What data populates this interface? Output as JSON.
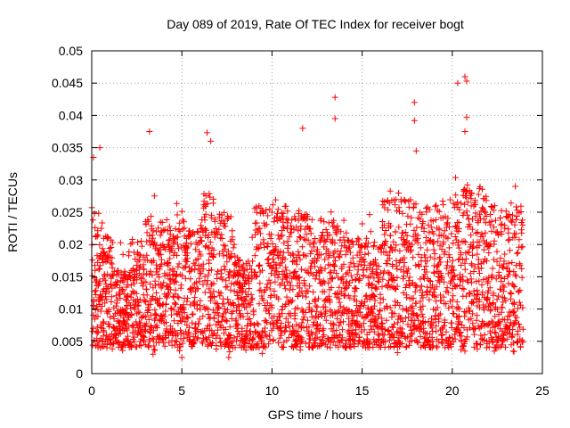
{
  "chart_data": {
    "type": "scatter",
    "title": "Day 089 of 2019, Rate Of TEC Index for receiver bogt",
    "xlabel": "GPS time / hours",
    "ylabel": "ROTI / TECUs",
    "xlim": [
      0,
      25
    ],
    "ylim": [
      0,
      0.05
    ],
    "x_ticks": [
      0,
      5,
      10,
      15,
      20,
      25
    ],
    "x_tick_labels": [
      "0",
      "5",
      "10",
      "15",
      "20",
      "25"
    ],
    "y_ticks": [
      0,
      0.005,
      0.01,
      0.015,
      0.02,
      0.025,
      0.03,
      0.035,
      0.04,
      0.045,
      0.05
    ],
    "y_tick_labels": [
      "0",
      "0.005",
      "0.01",
      "0.015",
      "0.02",
      "0.025",
      "0.03",
      "0.035",
      "0.04",
      "0.045",
      "0.05"
    ],
    "grid": true,
    "marker": "+",
    "marker_color": "#ff0000",
    "series": [
      {
        "name": "ROTI",
        "x_range": [
          0,
          23.95
        ],
        "sample_interval_hours": 0.04,
        "baseline_range": [
          0.005,
          0.025
        ],
        "notable_points": [
          {
            "x": 0.1,
            "y": 0.0335
          },
          {
            "x": 0.45,
            "y": 0.035
          },
          {
            "x": 3.2,
            "y": 0.0375
          },
          {
            "x": 6.4,
            "y": 0.0373
          },
          {
            "x": 6.6,
            "y": 0.036
          },
          {
            "x": 11.7,
            "y": 0.038
          },
          {
            "x": 13.5,
            "y": 0.0428
          },
          {
            "x": 13.5,
            "y": 0.0395
          },
          {
            "x": 17.9,
            "y": 0.042
          },
          {
            "x": 17.9,
            "y": 0.0392
          },
          {
            "x": 18.0,
            "y": 0.0345
          },
          {
            "x": 20.3,
            "y": 0.045
          },
          {
            "x": 20.7,
            "y": 0.046
          },
          {
            "x": 20.8,
            "y": 0.0453
          },
          {
            "x": 20.7,
            "y": 0.0375
          },
          {
            "x": 20.8,
            "y": 0.0397
          },
          {
            "x": 20.7,
            "y": 0.0035
          },
          {
            "x": 5.0,
            "y": 0.0025
          },
          {
            "x": 7.6,
            "y": 0.0025
          },
          {
            "x": 3.4,
            "y": 0.003
          },
          {
            "x": 21.9,
            "y": 0.004
          }
        ]
      }
    ]
  }
}
